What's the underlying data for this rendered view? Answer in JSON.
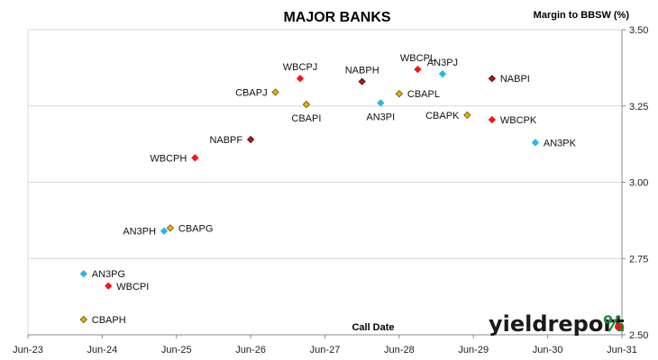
{
  "chart_data": {
    "type": "scatter",
    "title": "MAJOR BANKS",
    "ylabel": "Margin to BBSW (%)",
    "xlabel": "Call Date",
    "x_ticks": [
      "Jun-23",
      "Jun-24",
      "Jun-25",
      "Jun-26",
      "Jun-27",
      "Jun-28",
      "Jun-29",
      "Jun-30",
      "Jun-31"
    ],
    "y_ticks": [
      "2.50",
      "2.75",
      "3.00",
      "3.25",
      "3.50"
    ],
    "xlim": [
      "2023-06",
      "2031-06"
    ],
    "ylim": [
      2.5,
      3.5
    ],
    "y_axis_side": "right",
    "grid": "horizontal",
    "marker": "diamond",
    "colors": {
      "ANZ": "#29b6e8",
      "CBA": "#e6b010",
      "NAB": "#b01818",
      "WBC": "#ff1010"
    },
    "points": [
      {
        "label": "CBAPH",
        "group": "CBA",
        "x": "2024-03",
        "y": 2.55
      },
      {
        "label": "AN3PG",
        "group": "ANZ",
        "x": "2024-03",
        "y": 2.7
      },
      {
        "label": "WBCPI",
        "group": "WBC",
        "x": "2024-07",
        "y": 2.66
      },
      {
        "label": "AN3PH",
        "group": "ANZ",
        "x": "2025-04",
        "y": 2.84
      },
      {
        "label": "CBAPG",
        "group": "CBA",
        "x": "2025-05",
        "y": 2.85
      },
      {
        "label": "WBCPH",
        "group": "WBC",
        "x": "2025-09",
        "y": 3.08
      },
      {
        "label": "NABPF",
        "group": "NAB",
        "x": "2026-06",
        "y": 3.14
      },
      {
        "label": "CBAPJ",
        "group": "CBA",
        "x": "2026-10",
        "y": 3.295
      },
      {
        "label": "WBCPJ",
        "group": "WBC",
        "x": "2027-02",
        "y": 3.34
      },
      {
        "label": "CBAPI",
        "group": "CBA",
        "x": "2027-03",
        "y": 3.255
      },
      {
        "label": "NABPH",
        "group": "NAB",
        "x": "2027-12",
        "y": 3.33
      },
      {
        "label": "AN3PI",
        "group": "ANZ",
        "x": "2028-03",
        "y": 3.26
      },
      {
        "label": "CBAPL",
        "group": "CBA",
        "x": "2028-06",
        "y": 3.29
      },
      {
        "label": "WBCPL",
        "group": "WBC",
        "x": "2028-09",
        "y": 3.37
      },
      {
        "label": "AN3PJ",
        "group": "ANZ",
        "x": "2029-01",
        "y": 3.355
      },
      {
        "label": "CBAPK",
        "group": "CBA",
        "x": "2029-05",
        "y": 3.22
      },
      {
        "label": "NABPI",
        "group": "NAB",
        "x": "2029-09",
        "y": 3.34
      },
      {
        "label": "WBCPK",
        "group": "WBC",
        "x": "2029-09",
        "y": 3.205
      },
      {
        "label": "AN3PK",
        "group": "ANZ",
        "x": "2030-04",
        "y": 3.13
      }
    ]
  },
  "logo": {
    "text": "yieldreport",
    "symbol": "%",
    "symbol_colors": [
      "#1e8a3a",
      "#d81e1e"
    ]
  }
}
